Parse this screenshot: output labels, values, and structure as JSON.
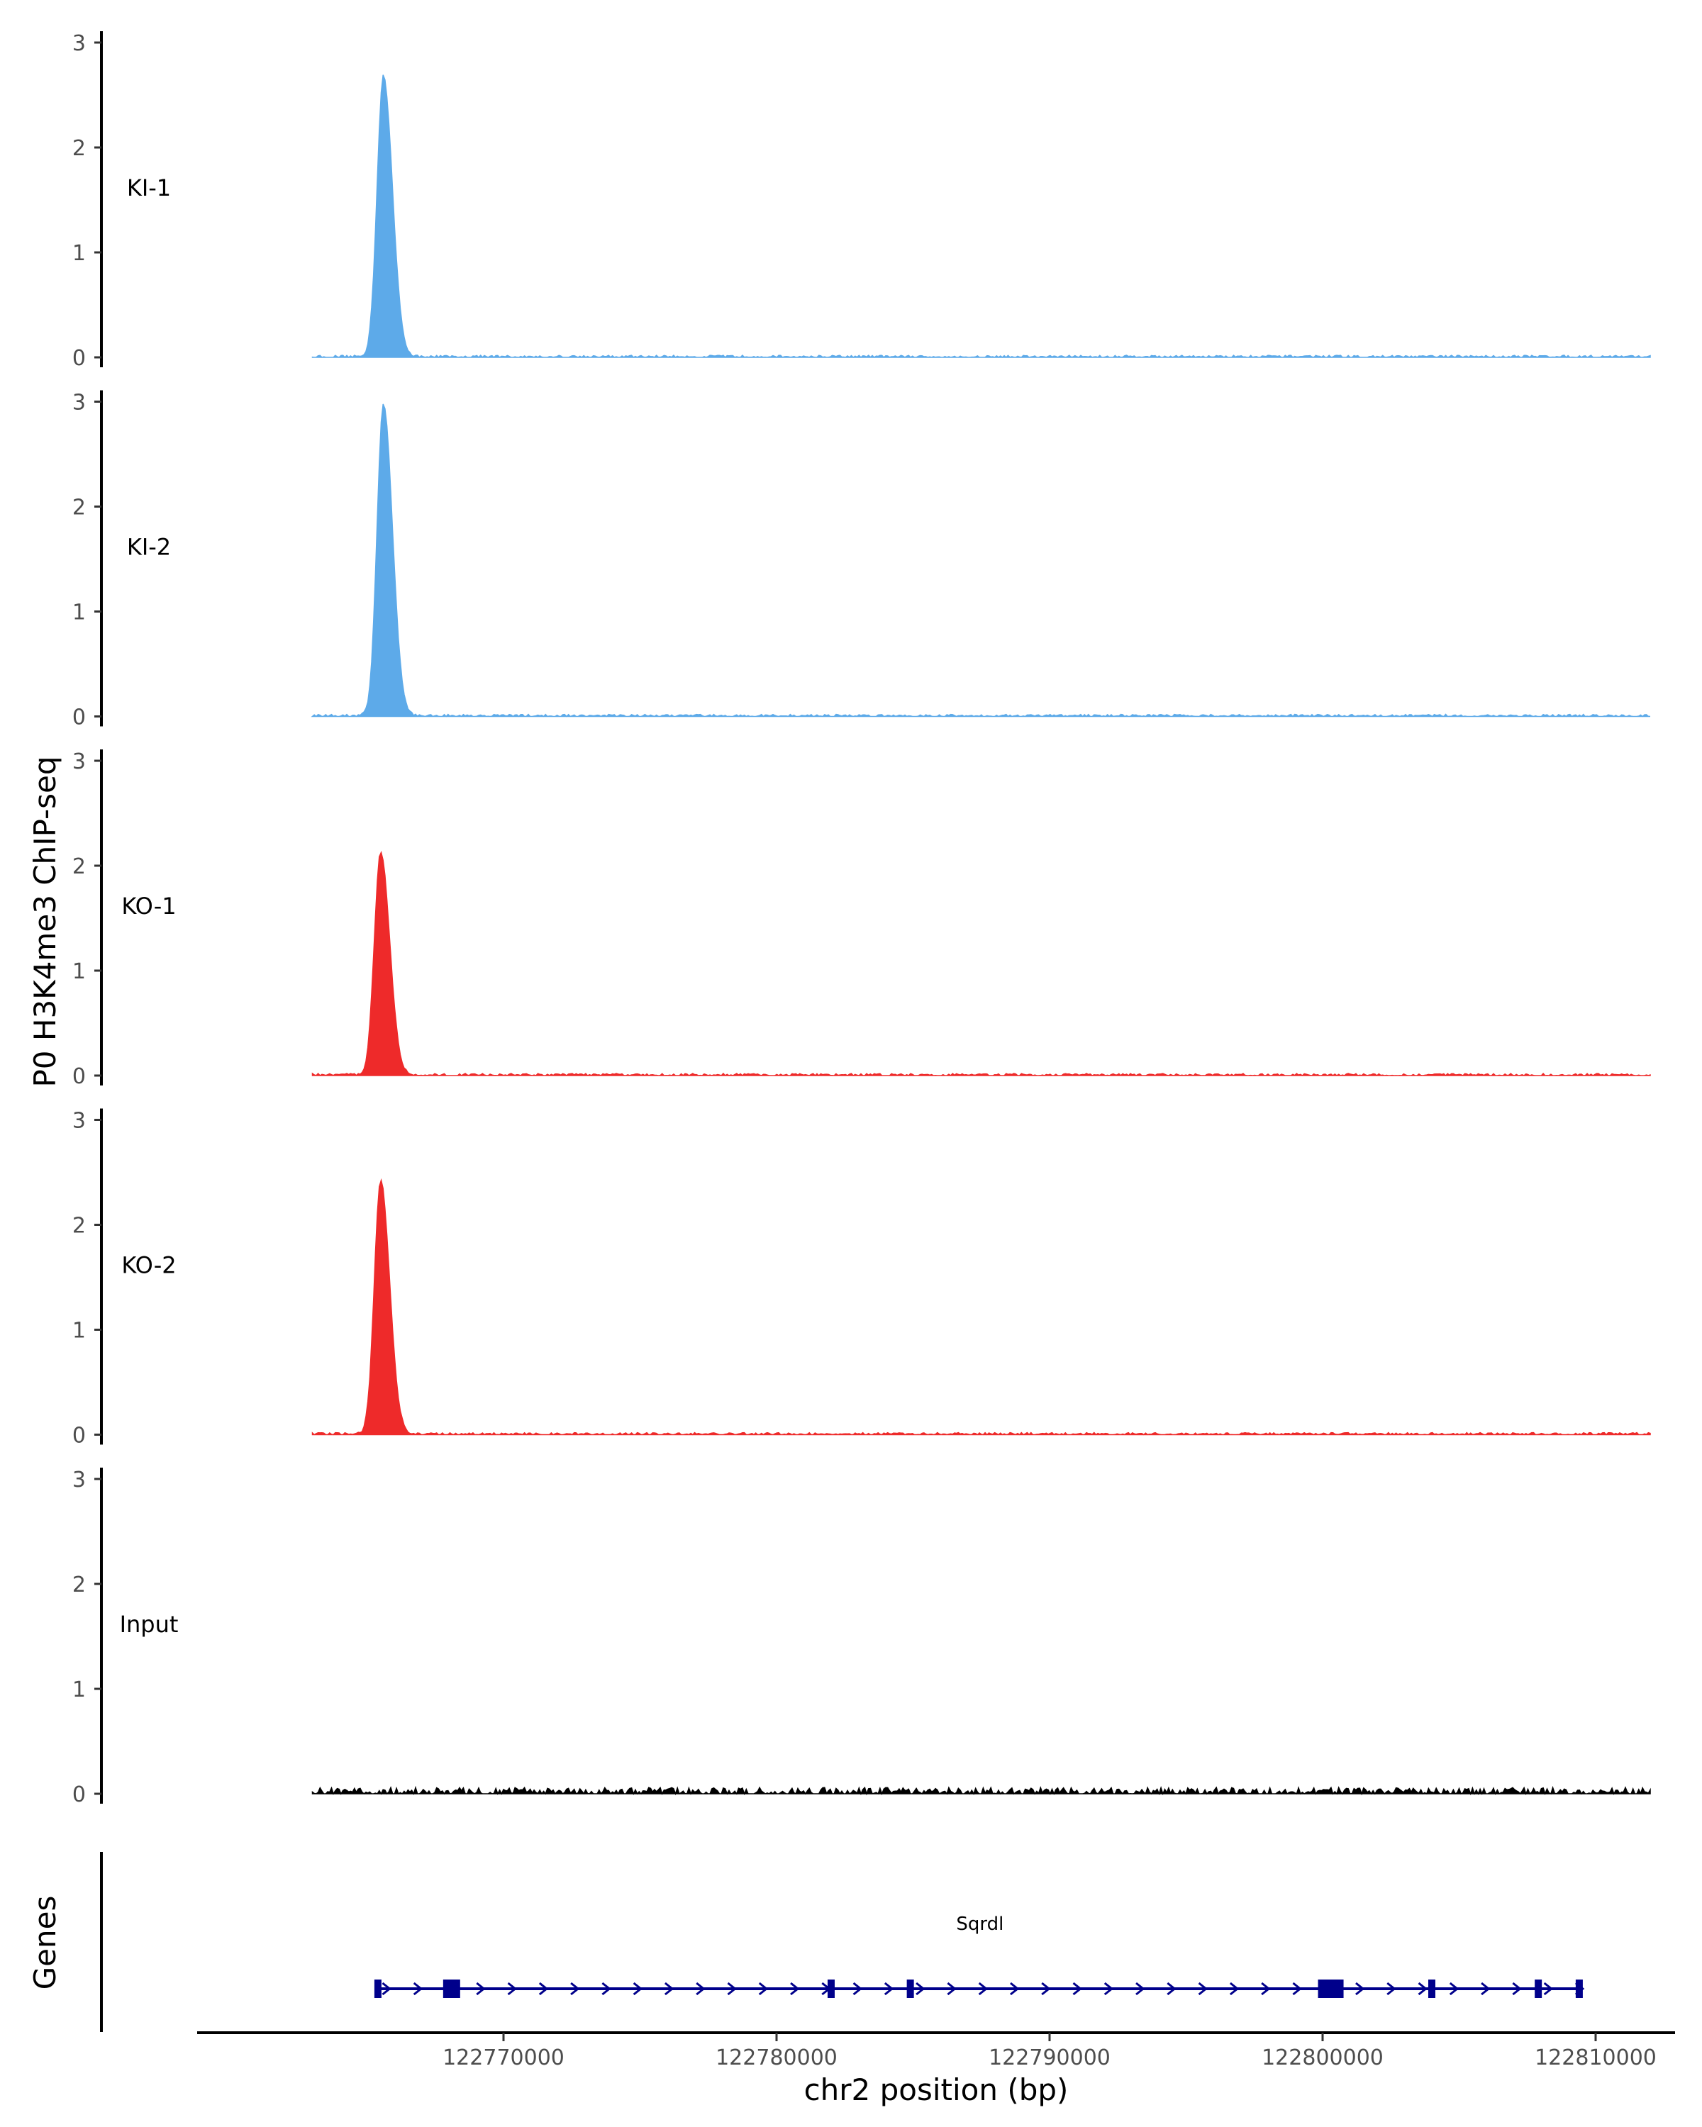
{
  "chart_data": {
    "type": "area",
    "title": "",
    "ylabel": "P0 H3K4me3 ChIP-seq",
    "xlabel": "chr2 position (bp)",
    "xlim": [
      122759000,
      122815000
    ],
    "data_xlim": [
      122763000,
      122812000
    ],
    "ylim": [
      0,
      3
    ],
    "y_ticks": [
      "0",
      "1",
      "2",
      "3"
    ],
    "x_ticks": [
      {
        "value": 122770000,
        "label": "122770000"
      },
      {
        "value": 122780000,
        "label": "122780000"
      },
      {
        "value": 122790000,
        "label": "122790000"
      },
      {
        "value": 122800000,
        "label": "122800000"
      },
      {
        "value": 122810000,
        "label": "122810000"
      }
    ],
    "tracks": [
      {
        "name": "KI-1",
        "color": "#5DAAE9",
        "peak_center": 122765600,
        "peak_value": 2.68,
        "background": 0.02
      },
      {
        "name": "KI-2",
        "color": "#5DAAE9",
        "peak_center": 122765600,
        "peak_value": 2.98,
        "background": 0.02
      },
      {
        "name": "KO-1",
        "color": "#EE2A2A",
        "peak_center": 122765500,
        "peak_value": 2.13,
        "background": 0.02
      },
      {
        "name": "KO-2",
        "color": "#EE2A2A",
        "peak_center": 122765500,
        "peak_value": 2.42,
        "background": 0.02
      },
      {
        "name": "Input",
        "color": "#000000",
        "peak_center": null,
        "peak_value": null,
        "background": 0.06
      }
    ],
    "genes_label": "Genes",
    "gene": {
      "name": "Sqrdl",
      "color": "#00008B",
      "start": 122765300,
      "end": 122809500,
      "strand": "+",
      "exons": [
        122765400,
        122768100,
        122782000,
        122784900,
        122800300,
        122804000,
        122807900,
        122809400
      ]
    }
  }
}
